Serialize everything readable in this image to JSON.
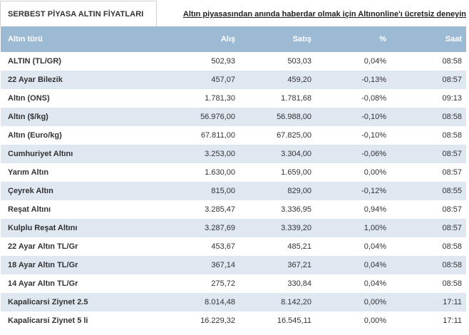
{
  "header": {
    "tab_title": "SERBEST PİYASA ALTIN FİYATLARI",
    "promo_link": "Altın piyasasından anında haberdar olmak için Altınonline'ı ücretsiz deneyin"
  },
  "table": {
    "columns": [
      "Altın türü",
      "Alış",
      "Satış",
      "%",
      "Saat"
    ],
    "rows": [
      {
        "name": "ALTIN (TL/GR)",
        "buy": "502,93",
        "sell": "503,03",
        "pct": "0,04%",
        "time": "08:58"
      },
      {
        "name": "22 Ayar Bilezik",
        "buy": "457,07",
        "sell": "459,20",
        "pct": "-0,13%",
        "time": "08:57"
      },
      {
        "name": "Altın (ONS)",
        "buy": "1.781,30",
        "sell": "1.781,68",
        "pct": "-0,08%",
        "time": "09:13"
      },
      {
        "name": "Altın ($/kg)",
        "buy": "56.976,00",
        "sell": "56.988,00",
        "pct": "-0,10%",
        "time": "08:58"
      },
      {
        "name": "Altın (Euro/kg)",
        "buy": "67.811,00",
        "sell": "67.825,00",
        "pct": "-0,10%",
        "time": "08:58"
      },
      {
        "name": "Cumhuriyet Altını",
        "buy": "3.253,00",
        "sell": "3.304,00",
        "pct": "-0,06%",
        "time": "08:57"
      },
      {
        "name": "Yarım Altın",
        "buy": "1.630,00",
        "sell": "1.659,00",
        "pct": "0,00%",
        "time": "08:57"
      },
      {
        "name": "Çeyrek Altın",
        "buy": "815,00",
        "sell": "829,00",
        "pct": "-0,12%",
        "time": "08:55"
      },
      {
        "name": "Reşat Altını",
        "buy": "3.285,47",
        "sell": "3.336,95",
        "pct": "0,94%",
        "time": "08:57"
      },
      {
        "name": "Kulplu Reşat Altını",
        "buy": "3.287,69",
        "sell": "3.339,20",
        "pct": "1,00%",
        "time": "08:57"
      },
      {
        "name": "22 Ayar Altın TL/Gr",
        "buy": "453,67",
        "sell": "485,21",
        "pct": "0,04%",
        "time": "08:58"
      },
      {
        "name": "18 Ayar Altın TL/Gr",
        "buy": "367,14",
        "sell": "367,21",
        "pct": "0,04%",
        "time": "08:58"
      },
      {
        "name": "14 Ayar Altın TL/Gr",
        "buy": "275,72",
        "sell": "330,84",
        "pct": "0,04%",
        "time": "08:58"
      },
      {
        "name": "Kapalicarsi Ziynet 2.5",
        "buy": "8.014,48",
        "sell": "8.142,20",
        "pct": "0,00%",
        "time": "17:11"
      },
      {
        "name": "Kapalicarsi Ziynet 5 li",
        "buy": "16.229,32",
        "sell": "16.545,11",
        "pct": "0,00%",
        "time": "17:11"
      }
    ]
  }
}
